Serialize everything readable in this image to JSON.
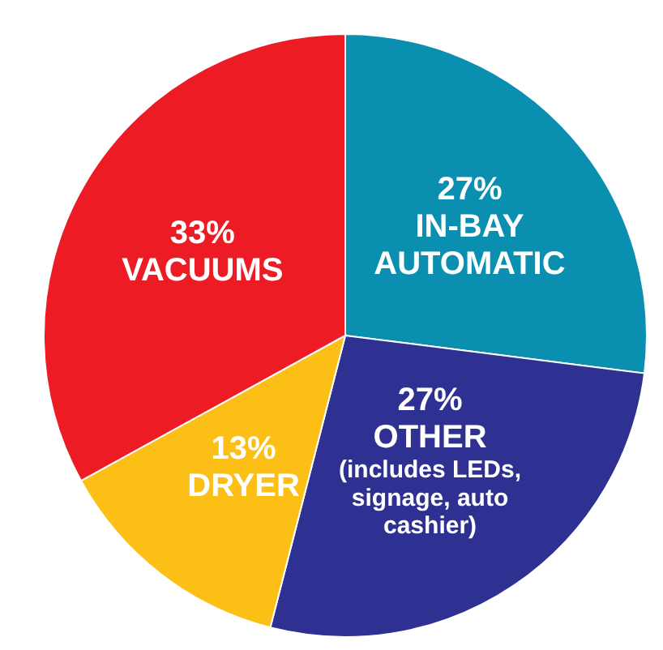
{
  "chart_data": {
    "type": "pie",
    "categories": [
      "IN-BAY AUTOMATIC",
      "OTHER (includes LEDs, signage, auto cashier)",
      "DRYER",
      "VACUUMS"
    ],
    "values": [
      27,
      27,
      13,
      33
    ],
    "colors": [
      "#0a8fb0",
      "#2e3192",
      "#fbbf16",
      "#ed1c24"
    ],
    "value_labels": [
      "27%",
      "27%",
      "13%",
      "33%"
    ]
  }
}
